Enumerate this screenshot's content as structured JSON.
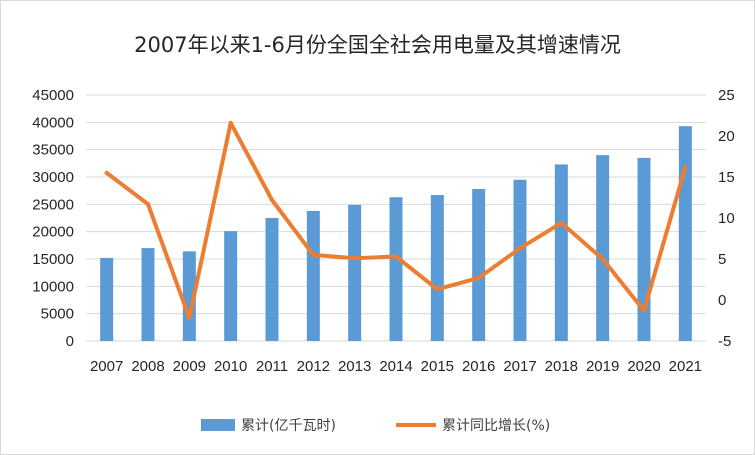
{
  "chart_data": {
    "type": "bar+line",
    "title": "2007年以来1-6月份全国全社会用电量及其增速情况",
    "categories": [
      "2007",
      "2008",
      "2009",
      "2010",
      "2011",
      "2012",
      "2013",
      "2014",
      "2015",
      "2016",
      "2017",
      "2018",
      "2019",
      "2020",
      "2021"
    ],
    "series": [
      {
        "name": "累计(亿千瓦时)",
        "type": "bar",
        "axis": "left",
        "color": "#5b9bd5",
        "values": [
          15200,
          17000,
          16400,
          20100,
          22500,
          23800,
          24900,
          26300,
          26700,
          27800,
          29500,
          32300,
          34000,
          33500,
          39300
        ]
      },
      {
        "name": "累计同比增长(%)",
        "type": "line",
        "axis": "right",
        "color": "#ed7d31",
        "values": [
          15.5,
          11.7,
          -2.2,
          21.6,
          12.2,
          5.5,
          5.1,
          5.3,
          1.3,
          2.7,
          6.3,
          9.4,
          5.0,
          -1.3,
          16.2
        ]
      }
    ],
    "y_left": {
      "min": 0,
      "max": 45000,
      "step": 5000
    },
    "y_right": {
      "min": -5,
      "max": 25,
      "step": 5
    },
    "grid": true,
    "legend_position": "bottom"
  }
}
